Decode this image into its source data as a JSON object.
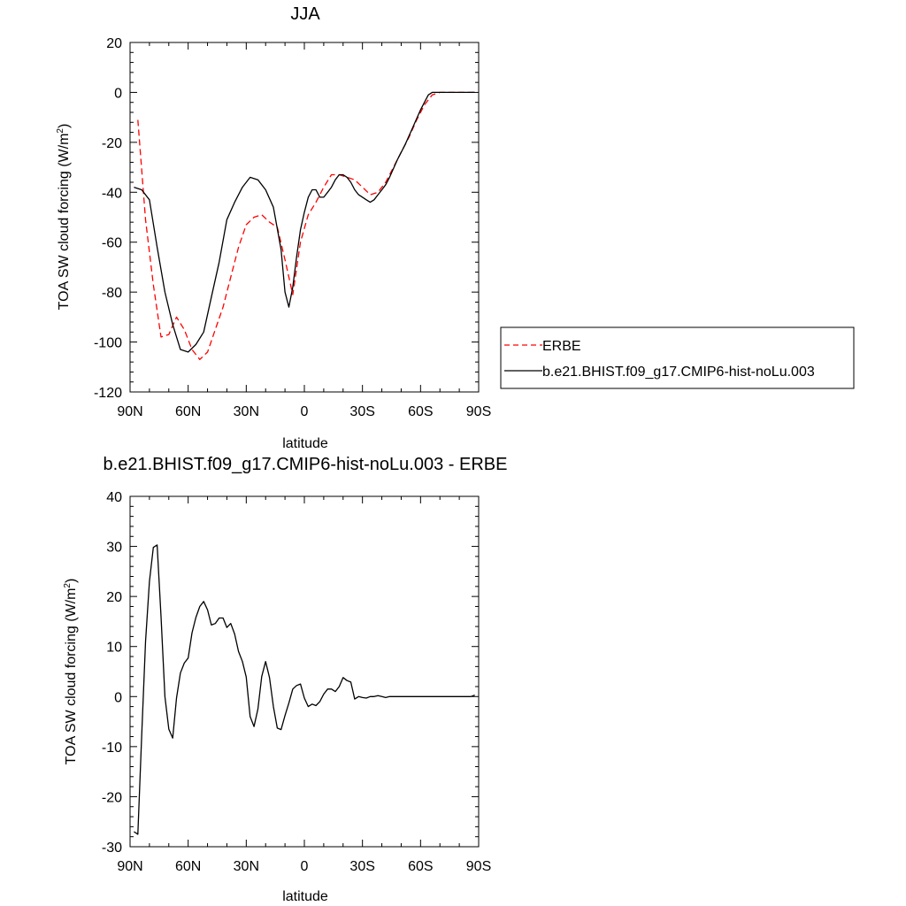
{
  "chart_data": [
    {
      "type": "line",
      "title": "JJA",
      "xlabel": "latitude",
      "ylabel": "TOA SW cloud forcing (W/m",
      "ylabel_sup": "2",
      "ylabel_end": ")",
      "xlim": [
        90,
        -90
      ],
      "ylim": [
        -120,
        20
      ],
      "xtick_values": [
        90,
        60,
        30,
        0,
        -30,
        -60,
        -90
      ],
      "xtick_labels": [
        "90N",
        "60N",
        "30N",
        "0",
        "30S",
        "60S",
        "90S"
      ],
      "ytick_values": [
        20,
        0,
        -20,
        -40,
        -60,
        -80,
        -100,
        -120
      ],
      "ytick_labels": [
        "20",
        "0",
        "-20",
        "-40",
        "-60",
        "-80",
        "-100",
        "-120"
      ],
      "legend_position": "right",
      "series": [
        {
          "name": "ERBE",
          "color": "#ff0000",
          "dash": "dashed",
          "x": [
            86,
            82,
            78,
            74,
            70,
            66,
            62,
            58,
            54,
            50,
            46,
            42,
            38,
            34,
            30,
            26,
            22,
            18,
            14,
            10,
            6,
            2,
            -2,
            -6,
            -10,
            -14,
            -18,
            -22,
            -26,
            -30,
            -34,
            -38,
            -42,
            -46,
            -50,
            -54,
            -58,
            -62,
            -66,
            -70,
            -74,
            -78,
            -82,
            -86,
            -88
          ],
          "y": [
            -11,
            -51,
            -77,
            -98,
            -97,
            -90,
            -95,
            -103,
            -107,
            -104,
            -95,
            -86,
            -74,
            -62,
            -53,
            -50,
            -49,
            -52,
            -54,
            -67,
            -81,
            -60,
            -49,
            -44,
            -38,
            -33,
            -33,
            -34,
            -35,
            -38,
            -41,
            -40,
            -36,
            -30,
            -24,
            -18,
            -11,
            -5,
            -1,
            0,
            0,
            0,
            0,
            0,
            0
          ]
        },
        {
          "name": "b.e21.BHIST.f09_g17.CMIP6-hist-noLu.003",
          "color": "#000000",
          "dash": "solid",
          "x": [
            88,
            84,
            80,
            76,
            72,
            68,
            64,
            60,
            56,
            52,
            48,
            44,
            40,
            36,
            32,
            28,
            24,
            20,
            16,
            12,
            10,
            8,
            6,
            4,
            2,
            0,
            -2,
            -4,
            -6,
            -8,
            -10,
            -12,
            -14,
            -16,
            -18,
            -20,
            -22,
            -24,
            -26,
            -28,
            -30,
            -32,
            -34,
            -36,
            -38,
            -40,
            -42,
            -44,
            -48,
            -52,
            -56,
            -60,
            -62,
            -64,
            -66,
            -68,
            -70,
            -74,
            -78,
            -82,
            -86,
            -88
          ],
          "y": [
            -38,
            -39,
            -43,
            -62,
            -80,
            -93,
            -103,
            -104,
            -101,
            -96,
            -82,
            -68,
            -51,
            -44,
            -38,
            -34,
            -35,
            -39,
            -46,
            -63,
            -80,
            -86,
            -78,
            -66,
            -55,
            -48,
            -42,
            -39,
            -39,
            -42,
            -42,
            -40,
            -38,
            -35,
            -33,
            -33,
            -34,
            -36,
            -39,
            -41,
            -42,
            -43,
            -44,
            -43,
            -41,
            -39,
            -37,
            -34,
            -27,
            -21,
            -14,
            -7,
            -4,
            -1,
            0,
            0,
            0,
            0,
            0,
            0,
            0,
            0
          ]
        }
      ]
    },
    {
      "type": "line",
      "title": "b.e21.BHIST.f09_g17.CMIP6-hist-noLu.003 - ERBE",
      "xlabel": "latitude",
      "ylabel": "TOA SW cloud forcing (W/m",
      "ylabel_sup": "2",
      "ylabel_end": ")",
      "xlim": [
        90,
        -90
      ],
      "ylim": [
        -30,
        40
      ],
      "xtick_values": [
        90,
        60,
        30,
        0,
        -30,
        -60,
        -90
      ],
      "xtick_labels": [
        "90N",
        "60N",
        "30N",
        "0",
        "30S",
        "60S",
        "90S"
      ],
      "ytick_values": [
        40,
        30,
        20,
        10,
        0,
        -10,
        -20,
        -30
      ],
      "ytick_labels": [
        "40",
        "30",
        "20",
        "10",
        "0",
        "-10",
        "-20",
        "-30"
      ],
      "series": [
        {
          "color": "#000000",
          "dash": "solid",
          "x": [
            88,
            86,
            84,
            82,
            80,
            78,
            76,
            74,
            72,
            70,
            68,
            66,
            64,
            62,
            60,
            58,
            56,
            54,
            52,
            50,
            48,
            46,
            44,
            42,
            40,
            38,
            36,
            34,
            32,
            30,
            28,
            26,
            24,
            22,
            20,
            18,
            16,
            14,
            12,
            10,
            8,
            6,
            4,
            2,
            0,
            -2,
            -4,
            -6,
            -8,
            -10,
            -12,
            -14,
            -16,
            -18,
            -20,
            -22,
            -24,
            -26,
            -28,
            -30,
            -32,
            -34,
            -36,
            -38,
            -40,
            -42,
            -44,
            -46,
            -48,
            -50,
            -52,
            -54,
            -56,
            -58,
            -60,
            -62,
            -64,
            -66,
            -68,
            -70,
            -72,
            -74,
            -76,
            -78,
            -80,
            -82,
            -84,
            -86,
            -88
          ],
          "y": [
            -27,
            -27.5,
            -8,
            11,
            23,
            29.8,
            30.3,
            16,
            0,
            -6.5,
            -8.3,
            -0.3,
            4.7,
            6.7,
            7.7,
            12.7,
            15.8,
            18,
            19,
            17.3,
            14.3,
            14.6,
            15.7,
            15.7,
            13.8,
            14.6,
            12.5,
            9,
            7,
            3.9,
            -4,
            -6,
            -2.5,
            4,
            7,
            3.8,
            -2,
            -6.3,
            -6.6,
            -3.8,
            -1.3,
            1.5,
            2.2,
            2.5,
            -0.3,
            -2,
            -1.5,
            -1.8,
            -1,
            0.5,
            1.5,
            1.5,
            1,
            2,
            3.8,
            3.2,
            2.9,
            -0.5,
            0,
            -0.2,
            -0.3,
            0,
            0,
            0.2,
            0,
            -0.2,
            0,
            0,
            0,
            0,
            0,
            0,
            0,
            0,
            0,
            0,
            0,
            0,
            0,
            0,
            0,
            0,
            0,
            0,
            0,
            0,
            0,
            0,
            0.3
          ]
        }
      ]
    }
  ]
}
